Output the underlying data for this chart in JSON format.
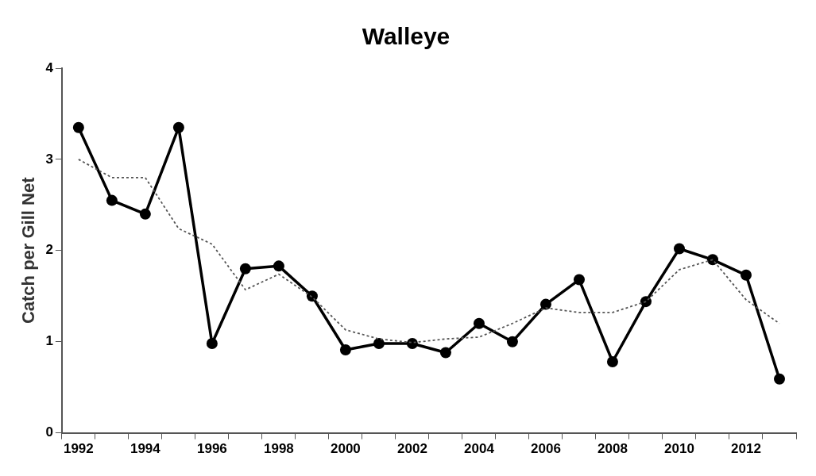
{
  "chart_data": {
    "type": "line",
    "title": "Walleye",
    "ylabel": "Catch per Gill Net",
    "categories": [
      "1992",
      null,
      "1994",
      null,
      "1996",
      null,
      "1998",
      null,
      "2000",
      null,
      "2002",
      null,
      "2004",
      null,
      "2006",
      null,
      "2008",
      null,
      "2010",
      null,
      "2012",
      null
    ],
    "series": [
      {
        "color": "#000000",
        "marker": "circle",
        "line_style": "solid",
        "values": [
          3.35,
          2.55,
          2.4,
          3.35,
          0.98,
          1.8,
          1.83,
          1.5,
          0.91,
          0.98,
          0.98,
          0.88,
          1.2,
          1.0,
          1.41,
          1.68,
          0.78,
          1.44,
          2.02,
          1.9,
          1.73,
          0.59
        ]
      },
      {
        "color": "#555555",
        "marker": "none",
        "line_style": "dotted",
        "values": [
          3.0,
          2.8,
          2.8,
          2.24,
          2.07,
          1.57,
          1.74,
          1.49,
          1.13,
          1.03,
          0.99,
          1.03,
          1.05,
          1.2,
          1.37,
          1.32,
          1.32,
          1.44,
          1.79,
          1.9,
          1.46,
          1.2
        ]
      }
    ],
    "ylim": [
      0,
      4
    ],
    "yticks": [
      0,
      1,
      2,
      3,
      4
    ],
    "grid": false,
    "legend": false
  }
}
